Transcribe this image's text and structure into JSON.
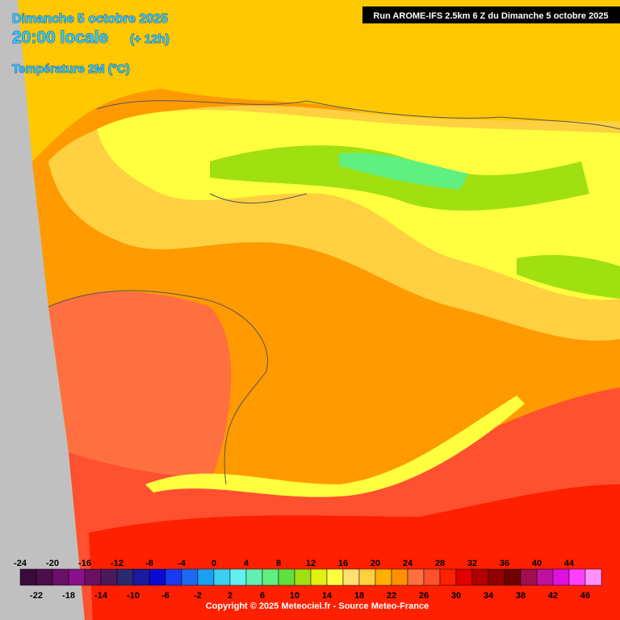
{
  "header": {
    "date": "Dimanche 5 octobre 2025",
    "time": "20:00 locale",
    "offset": "(+ 12h)",
    "field": "Température 2M (°C)",
    "run": "Run AROME-IFS 2.5km 6 Z du Dimanche 5 octobre 2025"
  },
  "legend": {
    "values": [
      -24,
      -22,
      -20,
      -18,
      -16,
      -14,
      -12,
      -10,
      -8,
      -6,
      -4,
      -2,
      0,
      2,
      4,
      6,
      8,
      10,
      12,
      14,
      16,
      18,
      20,
      22,
      24,
      26,
      28,
      30,
      32,
      34,
      36,
      38,
      40,
      42,
      44,
      46
    ],
    "colors": [
      "#3a0a3a",
      "#4b0f4b",
      "#6a0f6a",
      "#8a108a",
      "#6a1060",
      "#4b1a5a",
      "#2a2a70",
      "#1a1aa0",
      "#0a0ad0",
      "#1a3af0",
      "#1a6af0",
      "#1aa0f0",
      "#3ad0f0",
      "#60f0f0",
      "#60f0b0",
      "#60f080",
      "#60e040",
      "#a0e010",
      "#e0f010",
      "#ffff40",
      "#ffe070",
      "#ffd040",
      "#ffb000",
      "#ff9000",
      "#ff7040",
      "#ff5030",
      "#ff2000",
      "#e00000",
      "#b00000",
      "#900000",
      "#700000",
      "#a01050",
      "#c010a0",
      "#e010e0",
      "#ff40ff",
      "#ff90ff"
    ]
  },
  "footer": {
    "copyright": "Copyright © 2025 Meteociel.fr - Source Meteo-France"
  }
}
